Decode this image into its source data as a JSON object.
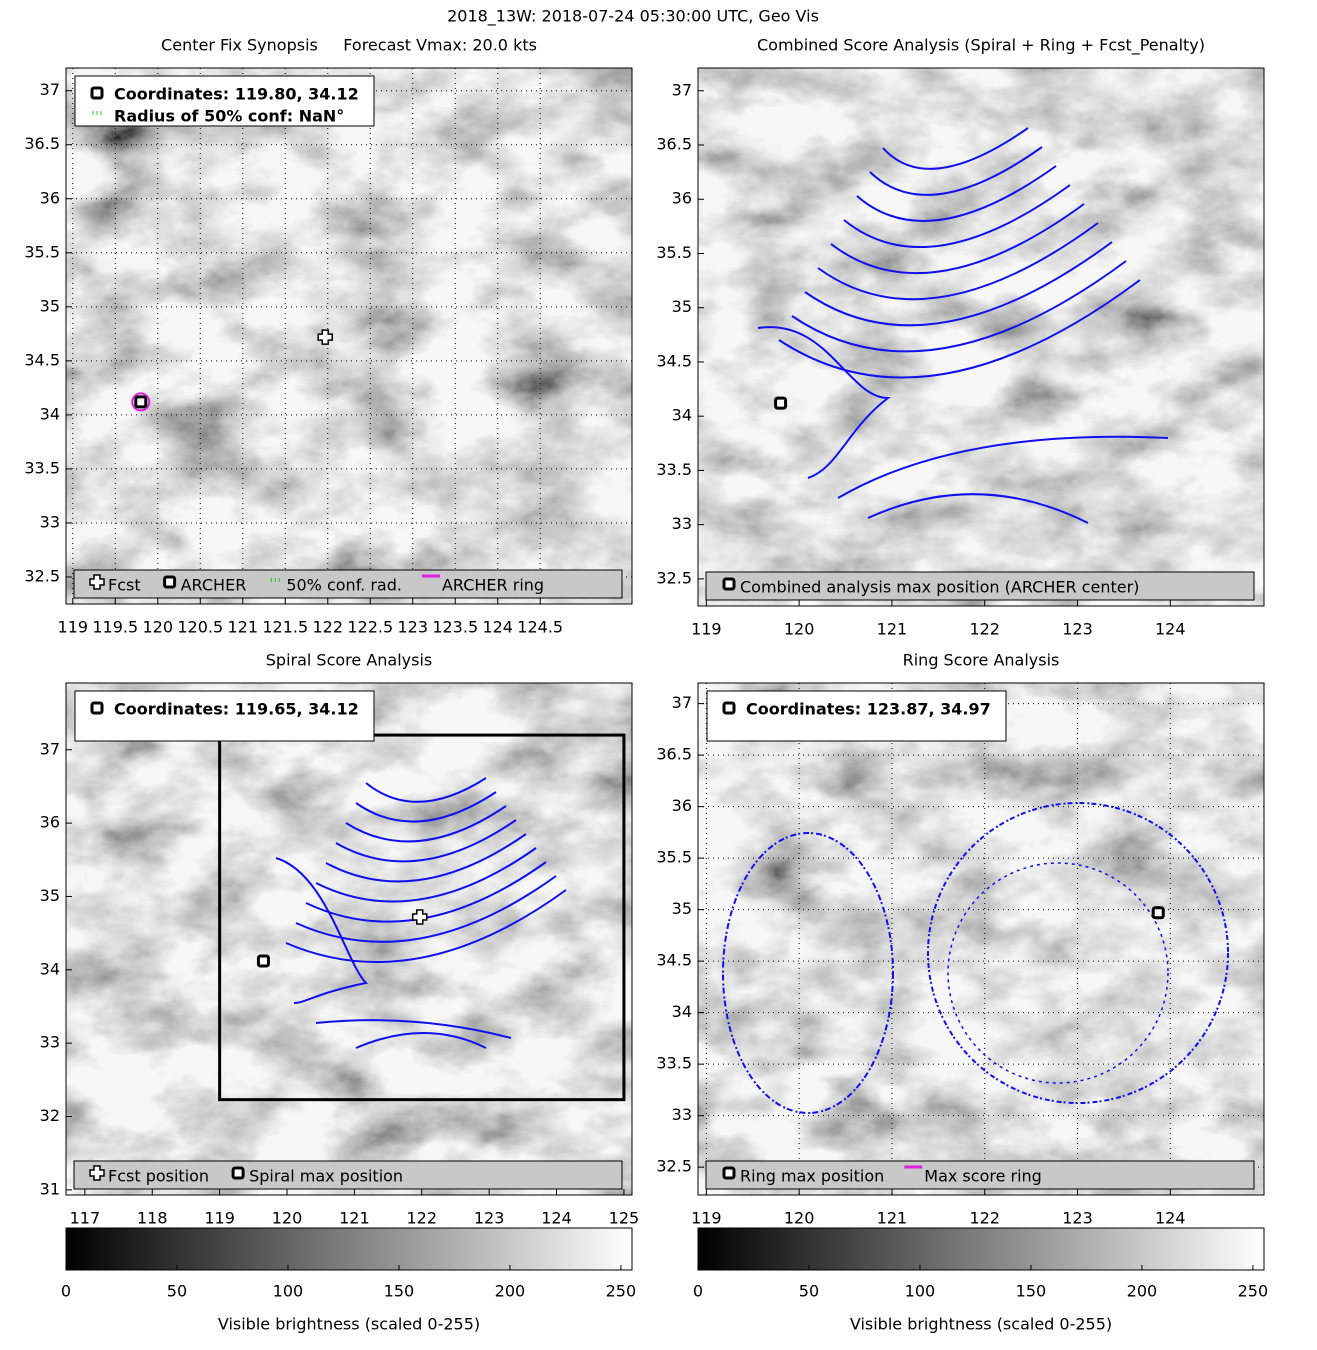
{
  "title": "2018_13W: 2018-07-24 05:30:00 UTC, Geo Vis",
  "chart_data": [
    {
      "type": "map",
      "title": "Center Fix Synopsis     Forecast Vmax: 20.0 kts",
      "xlim": [
        118.92,
        125.58
      ],
      "ylim": [
        32.25,
        37.21
      ],
      "xticks": [
        119,
        119.5,
        120,
        120.5,
        121,
        121.5,
        122,
        122.5,
        123,
        123.5,
        124,
        124.5
      ],
      "yticks": [
        32.5,
        33,
        33.5,
        34,
        34.5,
        35,
        35.5,
        36,
        36.5,
        37
      ],
      "grid": true,
      "points": [
        {
          "x": 121.97,
          "y": 34.72,
          "marker": "cross"
        },
        {
          "x": 119.8,
          "y": 34.12,
          "marker": "square",
          "ring": 0.1,
          "ring_color": "#e020e0"
        }
      ],
      "info": [
        {
          "text": "Coordinates: 119.80, 34.12",
          "marker": "square"
        },
        {
          "text": "Radius of 50% conf: NaN°",
          "marker": "green"
        }
      ],
      "legend": [
        {
          "label": "Fcst",
          "marker": "cross"
        },
        {
          "label": "ARCHER",
          "marker": "square"
        },
        {
          "label": "50% conf. rad.",
          "marker": "green"
        },
        {
          "label": "ARCHER ring",
          "marker": "ring"
        }
      ]
    },
    {
      "type": "map",
      "title": "Combined Score Analysis (Spiral + Ring + Fcst_Penalty)",
      "xlim": [
        118.91,
        125.01
      ],
      "ylim": [
        32.25,
        37.21
      ],
      "xticks": [
        119,
        120,
        121,
        122,
        123,
        124
      ],
      "yticks": [
        32.5,
        33,
        33.5,
        34,
        34.5,
        35,
        35.5,
        36,
        36.5,
        37
      ],
      "grid": false,
      "points": [
        {
          "x": 119.8,
          "y": 34.12,
          "marker": "square"
        }
      ],
      "legend": [
        {
          "label": "Combined analysis max position (ARCHER center)",
          "marker": "square"
        }
      ]
    },
    {
      "type": "map",
      "title": "Spiral Score Analysis",
      "xlim": [
        116.72,
        125.12
      ],
      "ylim": [
        30.93,
        37.91
      ],
      "xticks": [
        117,
        118,
        119,
        120,
        121,
        122,
        123,
        124,
        125
      ],
      "yticks": [
        31,
        32,
        33,
        34,
        35,
        36,
        37
      ],
      "grid": false,
      "box": {
        "xlim": [
          119,
          125
        ],
        "ylim": [
          32.23,
          37.2
        ]
      },
      "points": [
        {
          "x": 121.97,
          "y": 34.72,
          "marker": "cross"
        },
        {
          "x": 119.65,
          "y": 34.12,
          "marker": "square"
        }
      ],
      "info": [
        {
          "text": "Coordinates: 119.65, 34.12",
          "marker": "square"
        }
      ],
      "legend": [
        {
          "label": "Fcst position",
          "marker": "cross"
        },
        {
          "label": "Spiral max position",
          "marker": "square"
        }
      ]
    },
    {
      "type": "map",
      "title": "Ring Score Analysis",
      "xlim": [
        118.91,
        125.01
      ],
      "ylim": [
        32.23,
        37.2
      ],
      "xticks": [
        119,
        120,
        121,
        122,
        123,
        124
      ],
      "yticks": [
        32.5,
        33,
        33.5,
        34,
        34.5,
        35,
        35.5,
        36,
        36.5,
        37
      ],
      "grid": true,
      "points": [
        {
          "x": 123.87,
          "y": 34.97,
          "marker": "square",
          "ring": 0.06,
          "ring_color": "#e020e0"
        }
      ],
      "info": [
        {
          "text": "Coordinates: 123.87, 34.97",
          "marker": "square"
        }
      ],
      "legend": [
        {
          "label": "Ring max position",
          "marker": "square"
        },
        {
          "label": "Max score ring",
          "marker": "ring"
        }
      ]
    },
    {
      "type": "colorbar",
      "xlim": [
        0,
        255
      ],
      "xticks": [
        0,
        50,
        100,
        150,
        200,
        250
      ],
      "xlabel": "Visible brightness (scaled 0-255)"
    },
    {
      "type": "colorbar",
      "xlim": [
        0,
        255
      ],
      "xticks": [
        0,
        50,
        100,
        150,
        200,
        250
      ],
      "xlabel": "Visible brightness (scaled 0-255)"
    }
  ]
}
